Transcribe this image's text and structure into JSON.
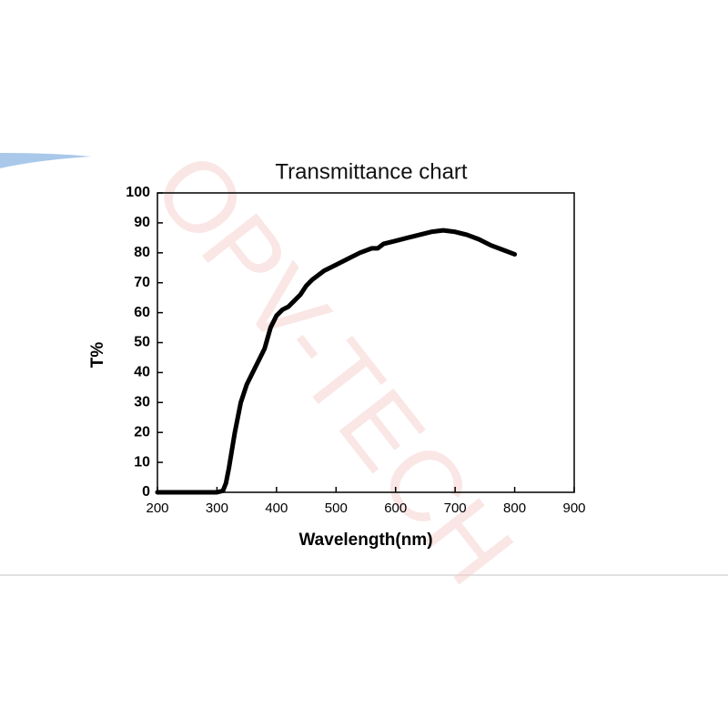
{
  "chart_data": {
    "type": "line",
    "title": "Transmittance chart",
    "watermark": "OPV-TECH",
    "x_label": "Wavelength(nm)",
    "y_label": "T%",
    "x": [
      200,
      250,
      300,
      310,
      315,
      320,
      330,
      340,
      350,
      360,
      370,
      380,
      390,
      400,
      410,
      420,
      430,
      440,
      450,
      460,
      480,
      500,
      520,
      540,
      560,
      570,
      580,
      600,
      620,
      640,
      660,
      680,
      700,
      720,
      740,
      760,
      780,
      800
    ],
    "series": [
      {
        "name": "T%",
        "color": "#000000",
        "values": [
          0,
          0,
          0,
          0.5,
          3,
          8,
          20,
          30,
          36,
          40,
          44,
          48,
          55,
          59,
          61,
          62,
          64,
          66,
          69,
          71,
          74,
          76,
          78,
          80,
          81.5,
          81.5,
          83,
          84,
          85,
          86,
          87,
          87.5,
          87,
          86,
          84.5,
          82.5,
          81,
          79.5
        ]
      }
    ],
    "xlim": [
      200,
      900
    ],
    "xticks": [
      200,
      300,
      400,
      500,
      600,
      700,
      800,
      900
    ],
    "ylim": [
      0,
      100
    ],
    "yticks": [
      0,
      10,
      20,
      30,
      40,
      50,
      60,
      70,
      80,
      90,
      100
    ]
  }
}
